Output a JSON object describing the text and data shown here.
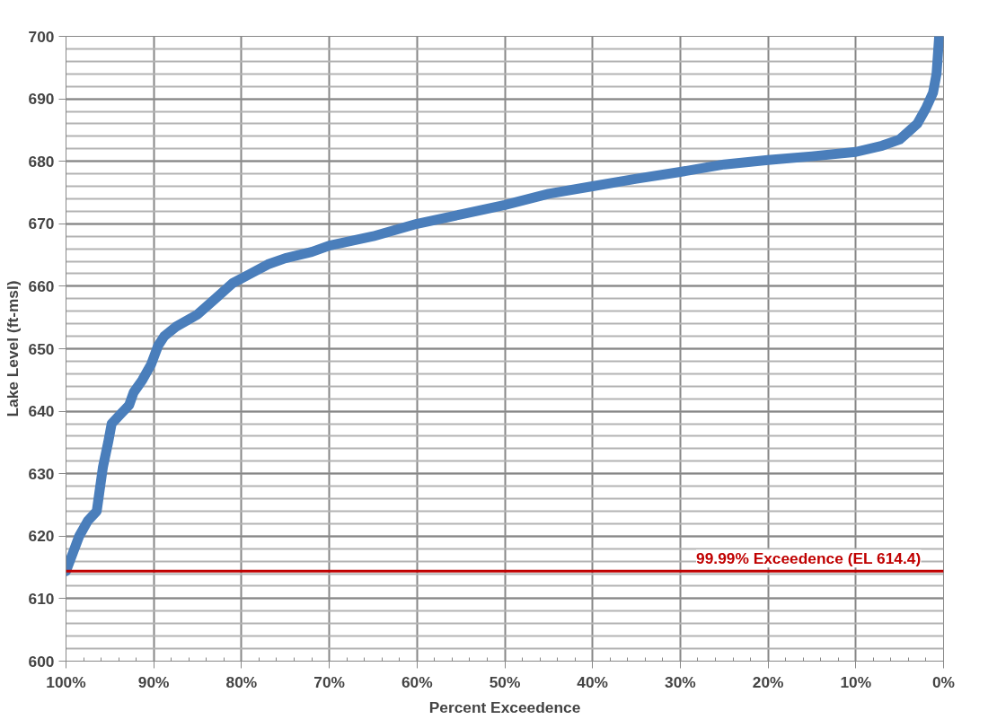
{
  "chart_data": {
    "type": "line",
    "xlabel": "Percent Exceedence",
    "ylabel": "Lake Level (ft-msl)",
    "xlim": [
      100,
      0
    ],
    "ylim": [
      600,
      700
    ],
    "xticks": [
      {
        "value": 100,
        "label": "100%"
      },
      {
        "value": 90,
        "label": "90%"
      },
      {
        "value": 80,
        "label": "80%"
      },
      {
        "value": 70,
        "label": "70%"
      },
      {
        "value": 60,
        "label": "60%"
      },
      {
        "value": 50,
        "label": "50%"
      },
      {
        "value": 40,
        "label": "40%"
      },
      {
        "value": 30,
        "label": "30%"
      },
      {
        "value": 20,
        "label": "20%"
      },
      {
        "value": 10,
        "label": "10%"
      },
      {
        "value": 0,
        "label": "0%"
      }
    ],
    "yticks": [
      600,
      610,
      620,
      630,
      640,
      650,
      660,
      670,
      680,
      690,
      700
    ],
    "grid": true,
    "series": [
      {
        "color": "#4a7ebb",
        "x": [
          100,
          99.3,
          98.5,
          97.5,
          96.5,
          96.2,
          95.8,
          95.2,
          94.8,
          93.8,
          92.8,
          92.3,
          91.3,
          90.3,
          89.5,
          88.8,
          87.5,
          85,
          83,
          81,
          79,
          77,
          75,
          72,
          70,
          65,
          60,
          55,
          50,
          45,
          40,
          35,
          30,
          25,
          20,
          15,
          10,
          7,
          5,
          3,
          2,
          1.2,
          0.8,
          0.5
        ],
        "values": [
          614.4,
          617,
          620,
          622.5,
          624,
          627,
          631,
          635,
          638,
          639.5,
          641,
          643,
          645,
          647.5,
          650.5,
          652,
          653.5,
          655.5,
          658,
          660.5,
          662,
          663.5,
          664.5,
          665.5,
          666.5,
          668,
          670,
          671.5,
          673,
          674.8,
          676,
          677.2,
          678.3,
          679.5,
          680.2,
          680.8,
          681.5,
          682.5,
          683.5,
          686,
          688.5,
          691,
          694,
          700
        ]
      }
    ],
    "ref_lines": [
      {
        "axis": "y",
        "value": 614.4,
        "label": "99.99% Exceedence (EL 614.4)",
        "color": "#c00000"
      }
    ]
  }
}
